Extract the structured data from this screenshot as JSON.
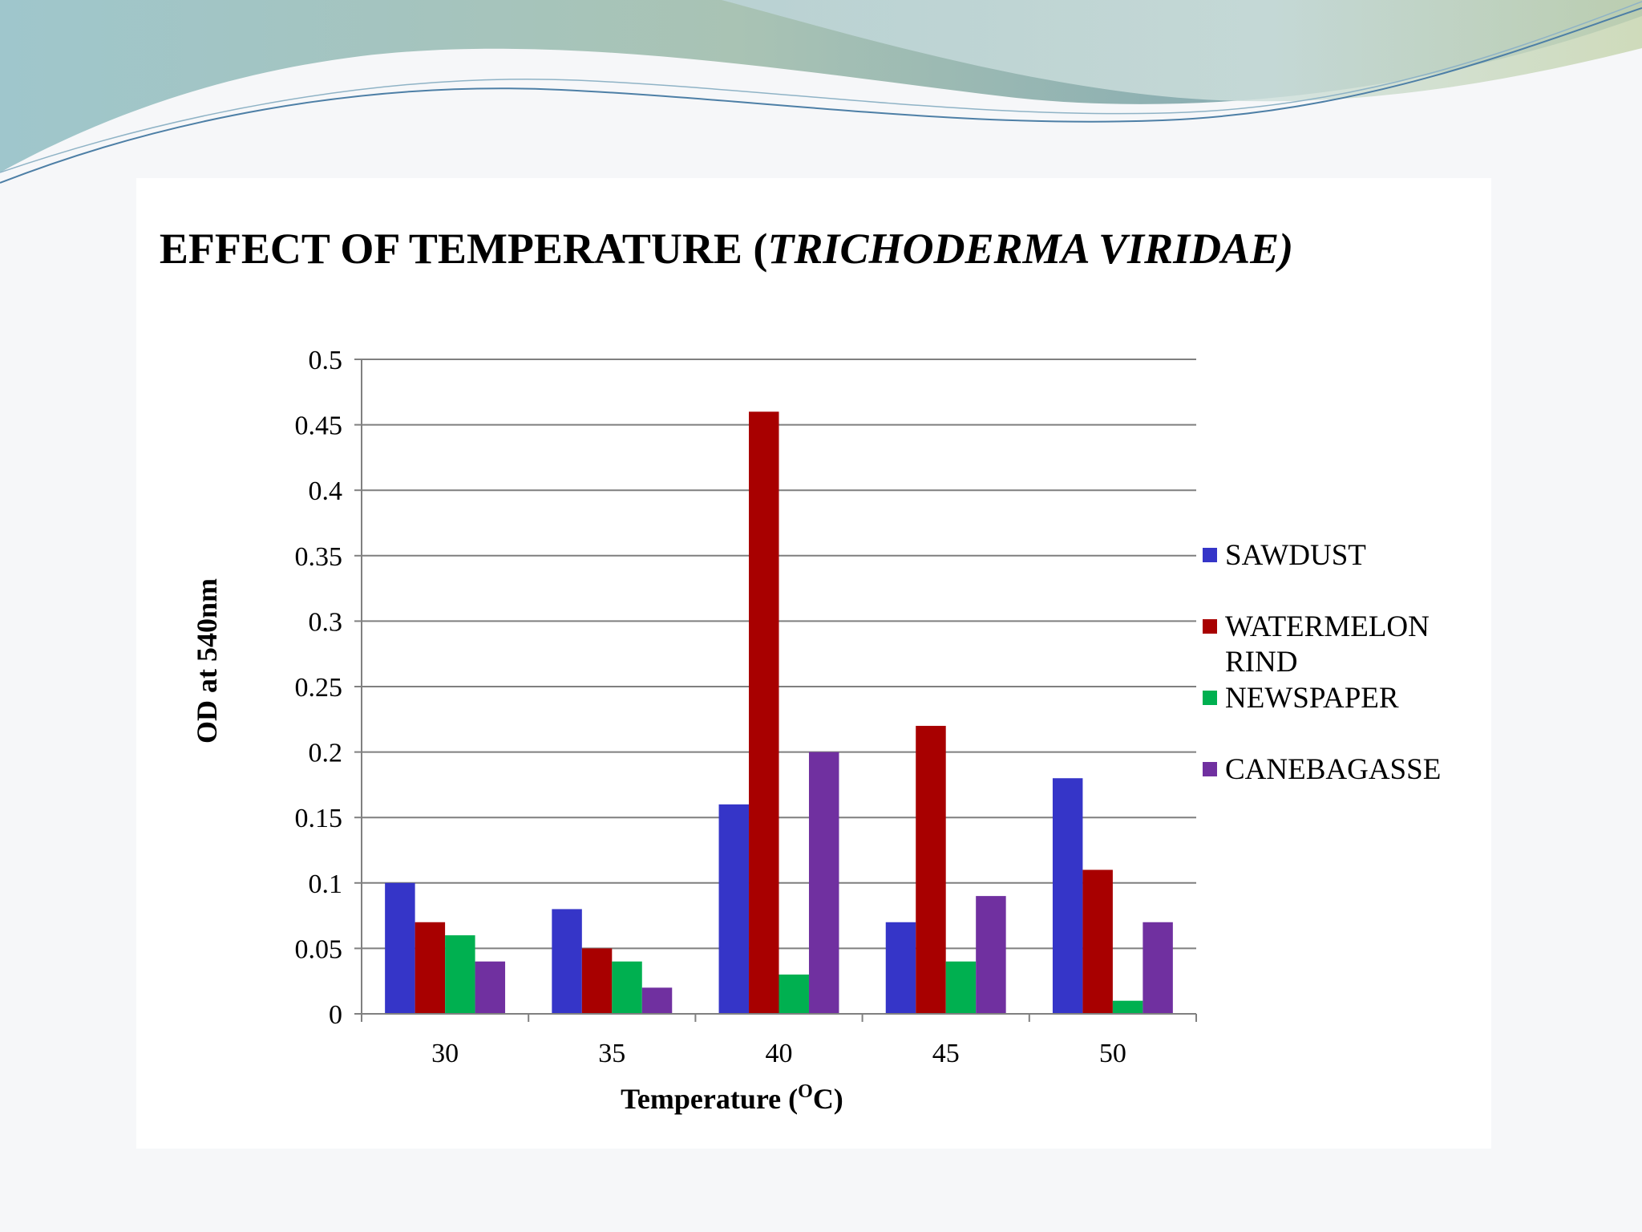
{
  "chart_data": {
    "type": "bar",
    "title_prefix": "EFFECT OF TEMPERATURE (",
    "title_italic": "TRICHODERMA VIRIDAE)",
    "xlabel_main": "Temperature (",
    "xlabel_sup": "O",
    "xlabel_end": "C)",
    "ylabel": "OD at 540nm",
    "categories": [
      "30",
      "35",
      "40",
      "45",
      "50"
    ],
    "ylim": [
      0,
      0.5
    ],
    "yticks": [
      "0",
      "0.05",
      "0.1",
      "0.15",
      "0.2",
      "0.25",
      "0.3",
      "0.35",
      "0.4",
      "0.45",
      "0.5"
    ],
    "grid": true,
    "legend_position": "right",
    "series": [
      {
        "name": "SAWDUST",
        "legend_lines": [
          "SAWDUST"
        ],
        "color": "#3535c8",
        "values": [
          0.1,
          0.08,
          0.16,
          0.07,
          0.18
        ]
      },
      {
        "name": "WATERMELON RIND",
        "legend_lines": [
          "WATERMELON",
          "RIND"
        ],
        "color": "#a80000",
        "values": [
          0.07,
          0.05,
          0.46,
          0.22,
          0.11
        ]
      },
      {
        "name": "NEWSPAPER",
        "legend_lines": [
          "NEWSPAPER"
        ],
        "color": "#00b050",
        "values": [
          0.06,
          0.04,
          0.03,
          0.04,
          0.01
        ]
      },
      {
        "name": "CANEBAGASSE",
        "legend_lines": [
          "CANEBAGASSE"
        ],
        "color": "#7030a0",
        "values": [
          0.04,
          0.02,
          0.2,
          0.09,
          0.07
        ]
      }
    ]
  }
}
